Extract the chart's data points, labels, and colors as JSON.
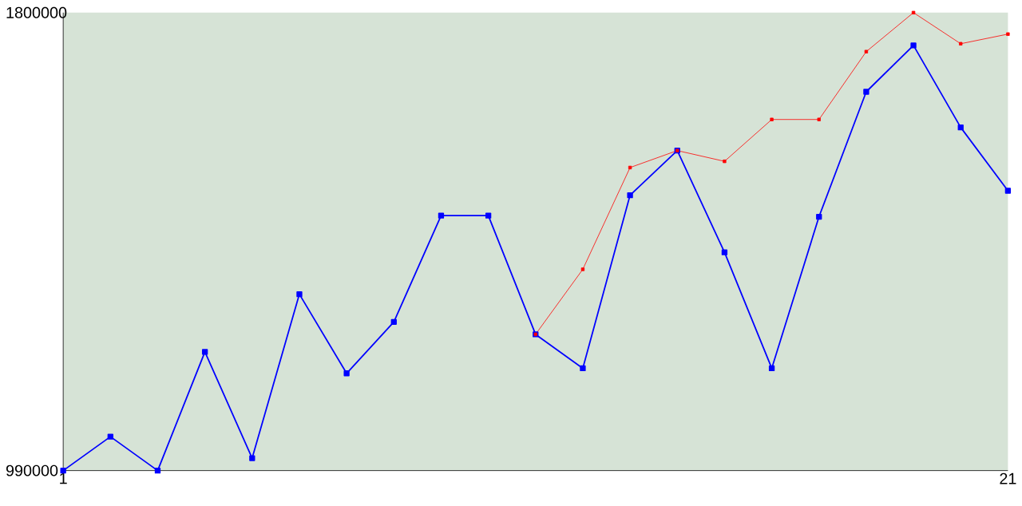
{
  "chart_data": {
    "type": "line",
    "xlim": [
      1,
      21
    ],
    "xticks": [
      1,
      21
    ],
    "ylim": [
      990000,
      1800000
    ],
    "yticks": [
      990000,
      1800000
    ],
    "marker": "square",
    "line_style": "solid",
    "grid": false,
    "series": [
      {
        "color": "#0000ff",
        "x": [
          1,
          2,
          3,
          4,
          5,
          6,
          7,
          8,
          9,
          10,
          11,
          12,
          13,
          14,
          15,
          16,
          17,
          18,
          19,
          20,
          21
        ],
        "values": [
          990000,
          1050000,
          990000,
          1200000,
          1012000,
          1302000,
          1162000,
          1253000,
          1441000,
          1441000,
          1231000,
          1171000,
          1477000,
          1556000,
          1376000,
          1171000,
          1439000,
          1660000,
          1742000,
          1597000,
          1485000
        ]
      },
      {
        "color": "#ff0000",
        "x": [
          11,
          12,
          13,
          14,
          15,
          16,
          17,
          18,
          19,
          20,
          21
        ],
        "values": [
          1231000,
          1346000,
          1526000,
          1556000,
          1537000,
          1611000,
          1611000,
          1731000,
          1800000,
          1745000,
          1762000
        ]
      }
    ]
  }
}
